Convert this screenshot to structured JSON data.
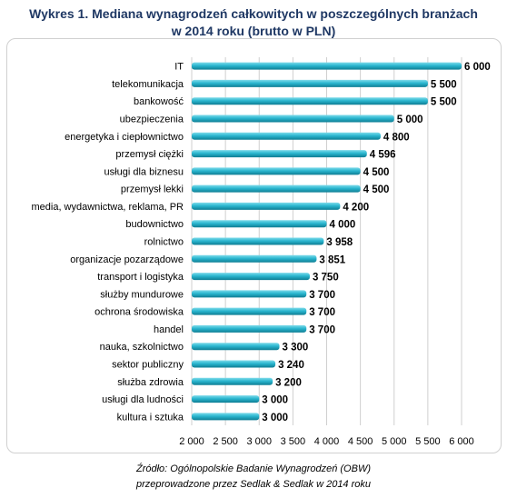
{
  "title_line1": "Wykres 1. Mediana wynagrodzeń całkowitych w poszczególnych branżach",
  "title_line2": "w 2014 roku (brutto w PLN)",
  "source_line1": "Źródło: Ogólnopolskie Badanie Wynagrodzeń (OBW)",
  "source_line2": "przeprowadzone  przez Sedlak & Sedlak w 2014 roku",
  "colors": {
    "bar_light": "#7fdbea",
    "bar_mid": "#2ab6cf",
    "bar_dark": "#0e7d93",
    "grid": "#cfcfcf",
    "title": "#1f3864"
  },
  "chart_data": {
    "type": "bar",
    "orientation": "horizontal",
    "categories": [
      "IT",
      "telekomunikacja",
      "bankowość",
      "ubezpieczenia",
      "energetyka i ciepłownictwo",
      "przemysł ciężki",
      "usługi dla biznesu",
      "przemysł lekki",
      "media, wydawnictwa, reklama, PR",
      "budownictwo",
      "rolnictwo",
      "organizacje pozarządowe",
      "transport i logistyka",
      "służby mundurowe",
      "ochrona środowiska",
      "handel",
      "nauka, szkolnictwo",
      "sektor publiczny",
      "służba zdrowia",
      "usługi dla ludności",
      "kultura i sztuka"
    ],
    "values": [
      6000,
      5500,
      5500,
      5000,
      4800,
      4596,
      4500,
      4500,
      4200,
      4000,
      3958,
      3851,
      3750,
      3700,
      3700,
      3700,
      3300,
      3240,
      3200,
      3000,
      3000
    ],
    "value_labels": [
      "6 000",
      "5 500",
      "5 500",
      "5 000",
      "4 800",
      "4 596",
      "4 500",
      "4 500",
      "4 200",
      "4 000",
      "3 958",
      "3 851",
      "3 750",
      "3 700",
      "3 700",
      "3 700",
      "3 300",
      "3 240",
      "3 200",
      "3 000",
      "3 000"
    ],
    "xlim": [
      2000,
      6000
    ],
    "x_ticks": [
      2000,
      2500,
      3000,
      3500,
      4000,
      4500,
      5000,
      5500,
      6000
    ],
    "x_tick_labels": [
      "2 000",
      "2 500",
      "3 000",
      "3 500",
      "4 000",
      "4 500",
      "5 000",
      "5 500",
      "6 000"
    ],
    "grid": true,
    "legend": "none"
  }
}
